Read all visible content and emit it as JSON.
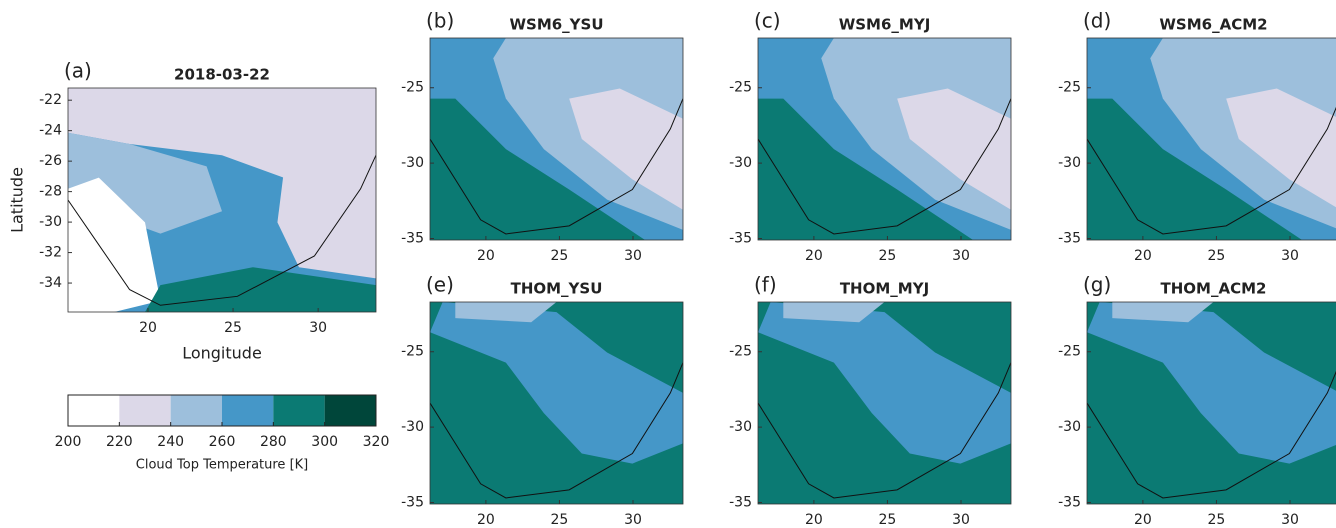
{
  "panels": [
    {
      "label": "(a)",
      "title": "2018-03-22",
      "xlabel": "Longitude",
      "ylabel": "Latitude",
      "xlim": [
        15.3,
        33.4
      ],
      "ylim": [
        -35.9,
        -21.2
      ],
      "xticks": [
        20,
        25,
        30
      ],
      "yticks": [
        -22,
        -24,
        -26,
        -28,
        -30,
        -32,
        -34
      ]
    },
    {
      "label": "(b)",
      "title": "WSM6_YSU",
      "xlim": [
        16.2,
        33.4
      ],
      "ylim": [
        -35.1,
        -21.7
      ],
      "xticks": [
        20,
        25,
        30
      ],
      "yticks": [
        -25,
        -30,
        -35
      ]
    },
    {
      "label": "(c)",
      "title": "WSM6_MYJ",
      "xlim": [
        16.2,
        33.4
      ],
      "ylim": [
        -35.1,
        -21.7
      ],
      "xticks": [
        20,
        25,
        30
      ],
      "yticks": [
        -25,
        -30,
        -35
      ]
    },
    {
      "label": "(d)",
      "title": "WSM6_ACM2",
      "xlim": [
        16.2,
        33.4
      ],
      "ylim": [
        -35.1,
        -21.7
      ],
      "xticks": [
        20,
        25,
        30
      ],
      "yticks": [
        -25,
        -30,
        -35
      ]
    },
    {
      "label": "(e)",
      "title": "THOM_YSU",
      "xlim": [
        16.2,
        33.4
      ],
      "ylim": [
        -35.1,
        -21.7
      ],
      "xticks": [
        20,
        25,
        30
      ],
      "yticks": [
        -25,
        -30,
        -35
      ]
    },
    {
      "label": "(f)",
      "title": "THOM_MYJ",
      "xlim": [
        16.2,
        33.4
      ],
      "ylim": [
        -35.1,
        -21.7
      ],
      "xticks": [
        20,
        25,
        30
      ],
      "yticks": [
        -25,
        -30,
        -35
      ]
    },
    {
      "label": "(g)",
      "title": "THOM_ACM2",
      "xlim": [
        16.2,
        33.4
      ],
      "ylim": [
        -35.1,
        -21.7
      ],
      "xticks": [
        20,
        25,
        30
      ],
      "yticks": [
        -25,
        -30,
        -35
      ]
    }
  ],
  "colorbar": {
    "label": "Cloud Top Temperature [K]",
    "lim": [
      200,
      320
    ],
    "ticks": [
      200,
      220,
      240,
      260,
      280,
      300,
      320
    ],
    "colors": [
      "#ffffff",
      "#dcd8e8",
      "#9dbfdc",
      "#4597c8",
      "#0b7a73",
      "#00463a"
    ]
  }
}
